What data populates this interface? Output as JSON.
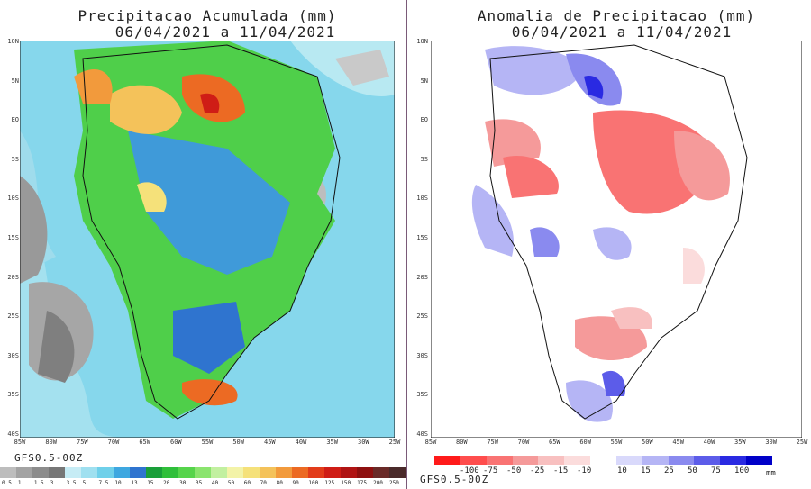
{
  "left_panel": {
    "title_line1": "Precipitacao Acumulada (mm)",
    "title_line2": "06/04/2021 a 11/04/2021",
    "model_label": "GFS0.5-00Z",
    "colorbar_labels": [
      "0.5",
      "1",
      "1.5",
      "3",
      "3.5",
      "5",
      "7.5",
      "10",
      "13",
      "15",
      "20",
      "30",
      "35",
      "40",
      "50",
      "60",
      "70",
      "80",
      "90",
      "100",
      "125",
      "150",
      "175",
      "200",
      "250"
    ],
    "colorbar_colors": [
      "#bdbdbd",
      "#a3a3a3",
      "#8c8c8c",
      "#777777",
      "#c6ecf5",
      "#9fe0f0",
      "#6fd0ea",
      "#3ea7e0",
      "#2f74cf",
      "#1a9f3a",
      "#2fbf3a",
      "#56d44b",
      "#8ae46e",
      "#c2f0a0",
      "#f3f3a8",
      "#f5e17a",
      "#f4c25a",
      "#f29a3c",
      "#ec6a23",
      "#e23c1a",
      "#cf1d16",
      "#b01414",
      "#8e1010",
      "#6a2a28",
      "#4a2a2a"
    ]
  },
  "right_panel": {
    "title_line1": "Anomalia de Precipitacao (mm)",
    "title_line2": "06/04/2021 a 11/04/2021",
    "model_label": "GFS0.5-00Z",
    "colorbar_neg_labels": [
      "-100",
      "-75",
      "-50",
      "-25",
      "-15",
      "-10"
    ],
    "colorbar_pos_labels": [
      "10",
      "15",
      "25",
      "50",
      "75",
      "100"
    ],
    "unit": "mm",
    "colorbar_colors": [
      "#ff1a1a",
      "#ff4d4d",
      "#f97373",
      "#f59a9a",
      "#f8c0c0",
      "#fbdcdc",
      "#ffffff",
      "#d9d9fb",
      "#b5b5f5",
      "#8a8aef",
      "#5c5ce9",
      "#2a2ae2",
      "#0000c8"
    ]
  },
  "lat_labels": [
    "10N",
    "5N",
    "EQ",
    "5S",
    "10S",
    "15S",
    "20S",
    "25S",
    "30S",
    "35S",
    "40S"
  ],
  "lon_labels": [
    "85W",
    "80W",
    "75W",
    "70W",
    "65W",
    "60W",
    "55W",
    "50W",
    "45W",
    "40W",
    "35W",
    "30W",
    "25W"
  ]
}
